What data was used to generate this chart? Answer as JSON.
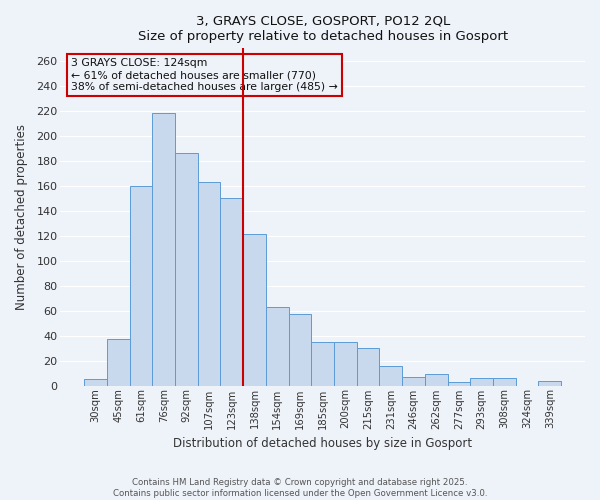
{
  "title": "3, GRAYS CLOSE, GOSPORT, PO12 2QL",
  "subtitle": "Size of property relative to detached houses in Gosport",
  "xlabel": "Distribution of detached houses by size in Gosport",
  "ylabel": "Number of detached properties",
  "bar_labels": [
    "30sqm",
    "45sqm",
    "61sqm",
    "76sqm",
    "92sqm",
    "107sqm",
    "123sqm",
    "138sqm",
    "154sqm",
    "169sqm",
    "185sqm",
    "200sqm",
    "215sqm",
    "231sqm",
    "246sqm",
    "262sqm",
    "277sqm",
    "293sqm",
    "308sqm",
    "324sqm",
    "339sqm"
  ],
  "bar_values": [
    5,
    37,
    160,
    218,
    186,
    163,
    150,
    121,
    63,
    57,
    35,
    35,
    30,
    16,
    7,
    9,
    3,
    6,
    6,
    0,
    4
  ],
  "bar_color": "#c8d9ee",
  "bar_edge_color": "#5b9bd5",
  "vline_color": "#cc0000",
  "annotation_title": "3 GRAYS CLOSE: 124sqm",
  "annotation_line1": "← 61% of detached houses are smaller (770)",
  "annotation_line2": "38% of semi-detached houses are larger (485) →",
  "annotation_box_color": "#cc0000",
  "ylim": [
    0,
    270
  ],
  "yticks": [
    0,
    20,
    40,
    60,
    80,
    100,
    120,
    140,
    160,
    180,
    200,
    220,
    240,
    260
  ],
  "footer1": "Contains HM Land Registry data © Crown copyright and database right 2025.",
  "footer2": "Contains public sector information licensed under the Open Government Licence v3.0.",
  "background_color": "#eef2f9",
  "grid_color": "#ffffff"
}
